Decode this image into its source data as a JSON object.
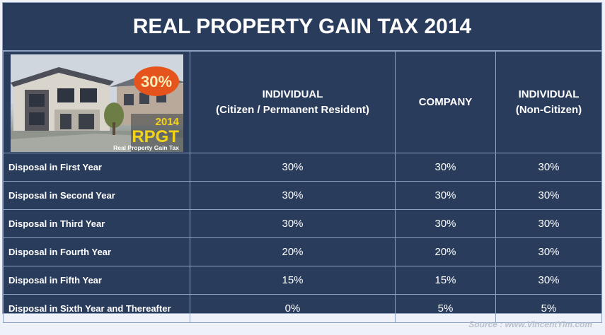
{
  "title": "REAL PROPERTY GAIN TAX 2014",
  "image": {
    "badge": "30%",
    "year": "2014",
    "acronym": "RPGT",
    "caption": "Real Property Gain Tax"
  },
  "columns": [
    {
      "line1": "INDIVIDUAL",
      "line2": "(Citizen / Permanent Resident)"
    },
    {
      "line1": "COMPANY",
      "line2": ""
    },
    {
      "line1": "INDIVIDUAL",
      "line2": "(Non-Citizen)"
    }
  ],
  "rows": [
    {
      "label": "Disposal in First Year",
      "values": [
        "30%",
        "30%",
        "30%"
      ]
    },
    {
      "label": "Disposal in Second Year",
      "values": [
        "30%",
        "30%",
        "30%"
      ]
    },
    {
      "label": "Disposal in Third Year",
      "values": [
        "30%",
        "30%",
        "30%"
      ]
    },
    {
      "label": "Disposal in Fourth Year",
      "values": [
        "20%",
        "20%",
        "30%"
      ]
    },
    {
      "label": "Disposal in Fifth Year",
      "values": [
        "15%",
        "15%",
        "30%"
      ]
    },
    {
      "label": "Disposal in Sixth Year and Thereafter",
      "values": [
        "0%",
        "5%",
        "5%"
      ]
    }
  ],
  "source": "Source : www.VincentYim.com",
  "colors": {
    "background": "#2a3c5c",
    "border": "#8da2c2",
    "badge": "#e4541c",
    "rpgt_text": "#f4d21a"
  }
}
